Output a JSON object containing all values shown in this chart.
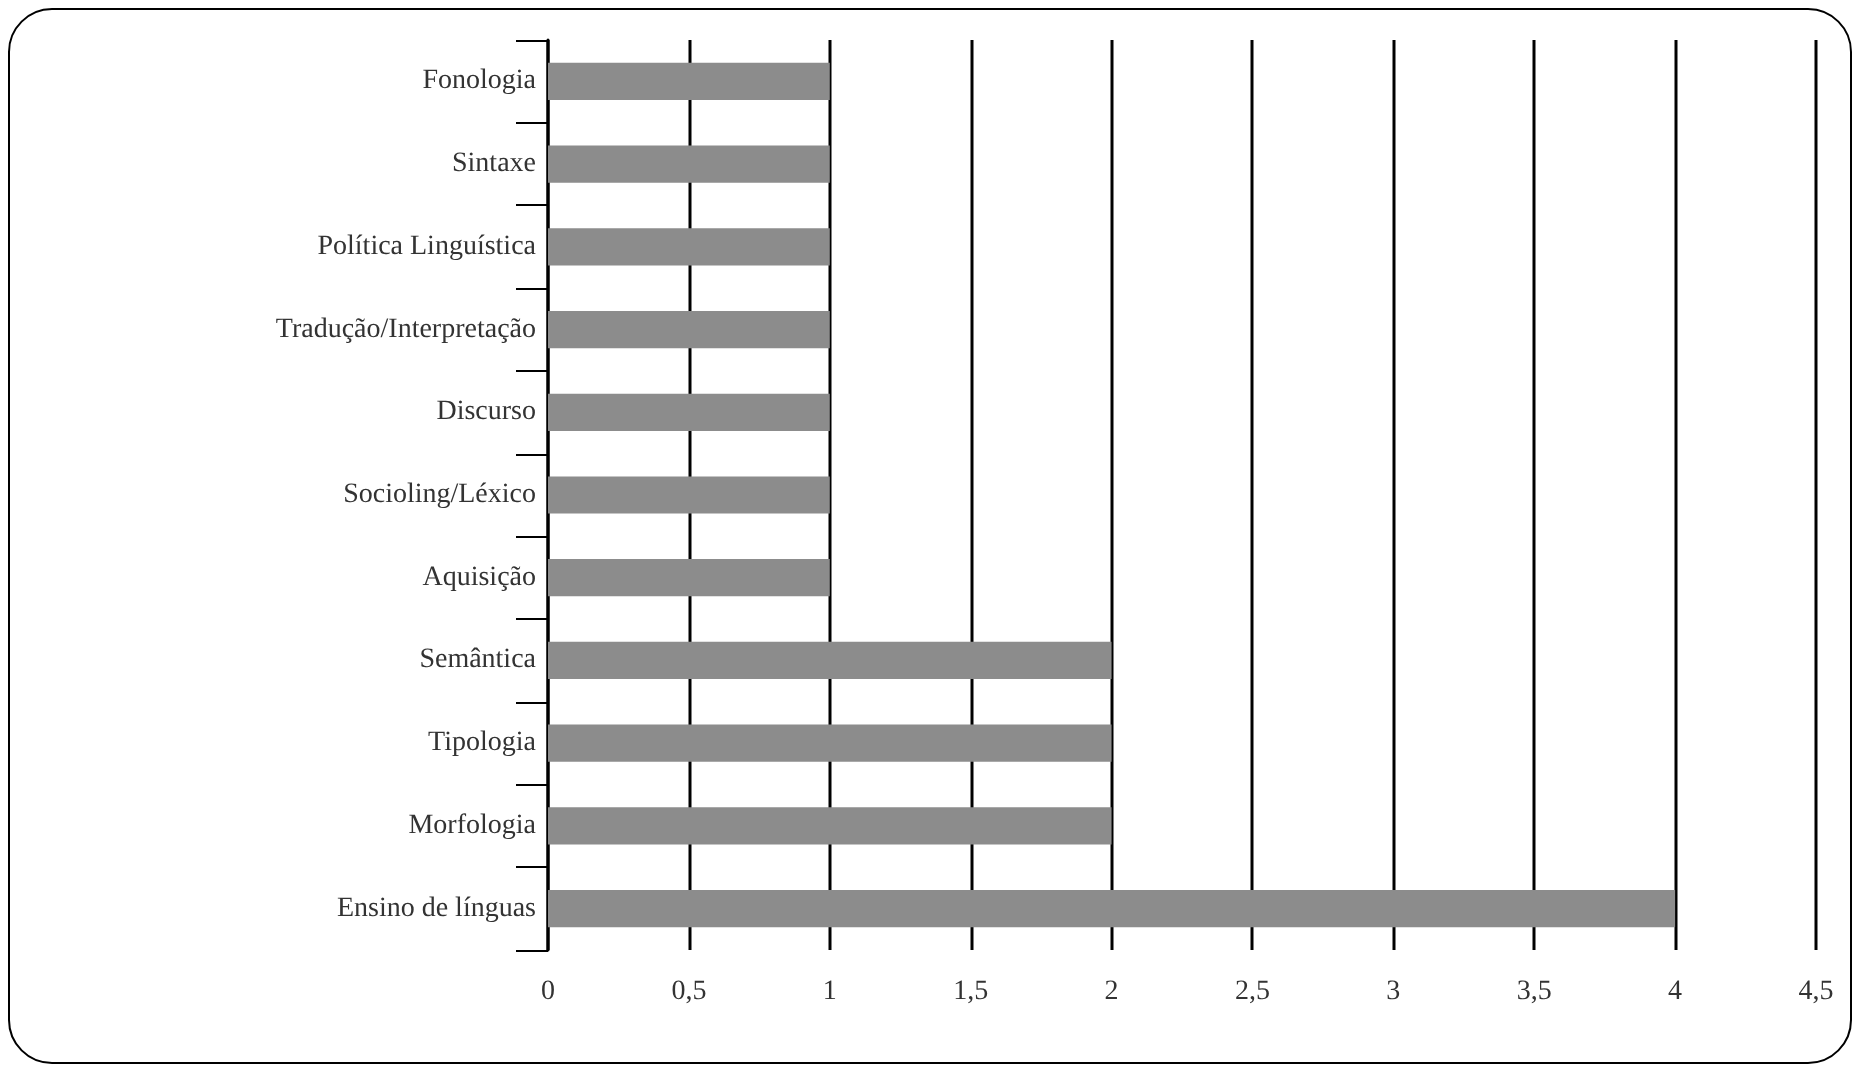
{
  "chart_data": {
    "type": "bar",
    "orientation": "horizontal",
    "categories": [
      "Fonologia",
      "Sintaxe",
      "Política Linguística",
      "Tradução/Interpretação",
      "Discurso",
      "Socioling/Léxico",
      "Aquisição",
      "Semântica",
      "Tipologia",
      "Morfologia",
      "Ensino de línguas"
    ],
    "values": [
      1,
      1,
      1,
      1,
      1,
      1,
      1,
      2,
      2,
      2,
      4
    ],
    "color": "#8c8c8c",
    "xlim": [
      0,
      4.5
    ],
    "xticks": [
      0,
      {
        "value": 0.5,
        "label": "0,5"
      },
      1,
      {
        "value": 1.5,
        "label": "1,5"
      },
      2,
      {
        "value": 2.5,
        "label": "2,5"
      },
      3,
      {
        "value": 3.5,
        "label": "3,5"
      },
      4,
      {
        "value": 4.5,
        "label": "4,5"
      }
    ],
    "grid": "x"
  }
}
